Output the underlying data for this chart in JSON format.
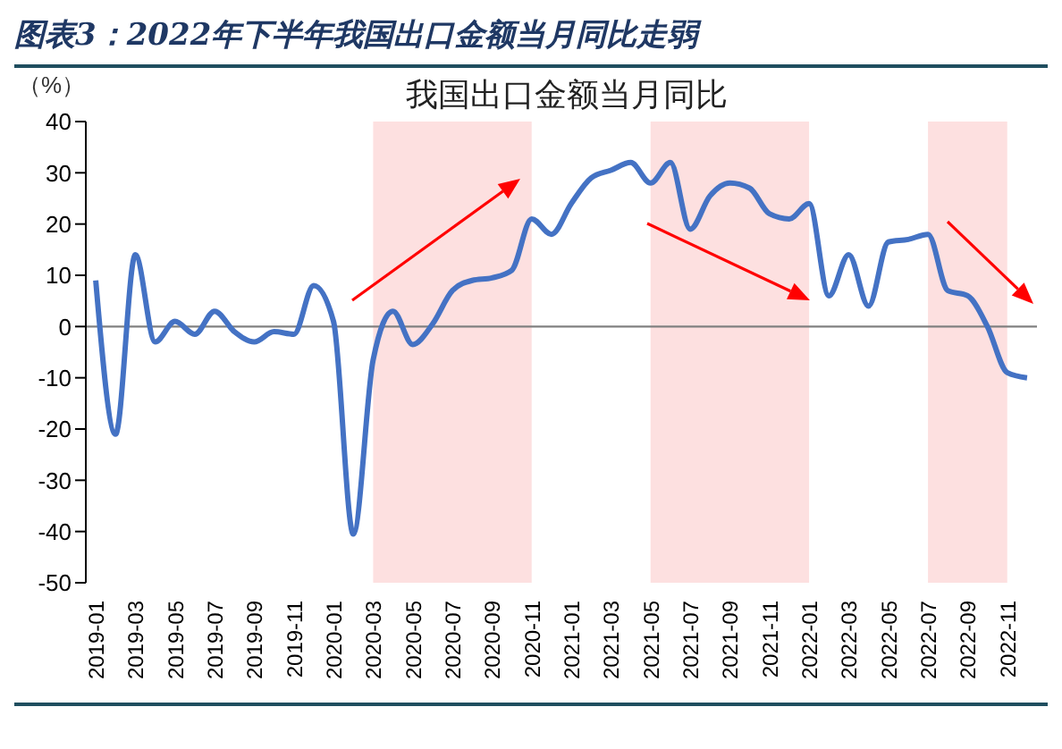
{
  "chart_data": {
    "type": "line",
    "title": "图表3：2022年下半年我国出口金额当月同比走弱",
    "subtitle": "我国出口金额当月同比",
    "ylabel": "（%）",
    "categories": [
      "2019-01",
      null,
      "2019-03",
      null,
      "2019-05",
      null,
      "2019-07",
      null,
      "2019-09",
      null,
      "2019-11",
      null,
      "2020-01",
      null,
      "2020-03",
      null,
      "2020-05",
      null,
      "2020-07",
      null,
      "2020-09",
      null,
      "2020-11",
      null,
      "2021-01",
      null,
      "2021-03",
      null,
      "2021-05",
      null,
      "2021-07",
      null,
      "2021-09",
      null,
      "2021-11",
      null,
      "2022-01",
      null,
      "2022-03",
      null,
      "2022-05",
      null,
      "2022-07",
      null,
      "2022-09",
      null,
      "2022-11",
      null
    ],
    "series": [
      {
        "color": "#4472c4",
        "values": [
          9,
          -21,
          14,
          -3,
          1,
          -1.5,
          3,
          -1,
          -3,
          -1,
          -1.5,
          8,
          1,
          -40.5,
          -6.5,
          3,
          -3.5,
          0.5,
          7,
          9,
          9.5,
          11,
          21,
          18,
          24,
          29,
          30.5,
          32,
          28,
          32,
          19,
          25.5,
          28,
          27,
          22,
          21,
          24,
          6,
          14,
          4,
          16.5,
          17,
          18,
          7,
          6,
          0,
          -9,
          -10
        ]
      }
    ],
    "ylim": [
      -50,
      40
    ],
    "yticks": [
      -50,
      -40,
      -30,
      -20,
      -10,
      0,
      10,
      20,
      30,
      40
    ],
    "bands": [
      {
        "axis": "x",
        "from": "2020-03",
        "to": "2020-11",
        "color": "#fde0e0"
      },
      {
        "axis": "x",
        "from": "2021-05",
        "to": "2022-01",
        "color": "#fde0e0"
      },
      {
        "axis": "x",
        "from": "2022-07",
        "to": "2022-11",
        "color": "#fde0e0"
      }
    ],
    "ref_lines": [
      {
        "axis": "y",
        "value": 0,
        "color": "#808080"
      }
    ],
    "grid": false,
    "legend": false,
    "marker": "none",
    "line_style": "solid"
  }
}
